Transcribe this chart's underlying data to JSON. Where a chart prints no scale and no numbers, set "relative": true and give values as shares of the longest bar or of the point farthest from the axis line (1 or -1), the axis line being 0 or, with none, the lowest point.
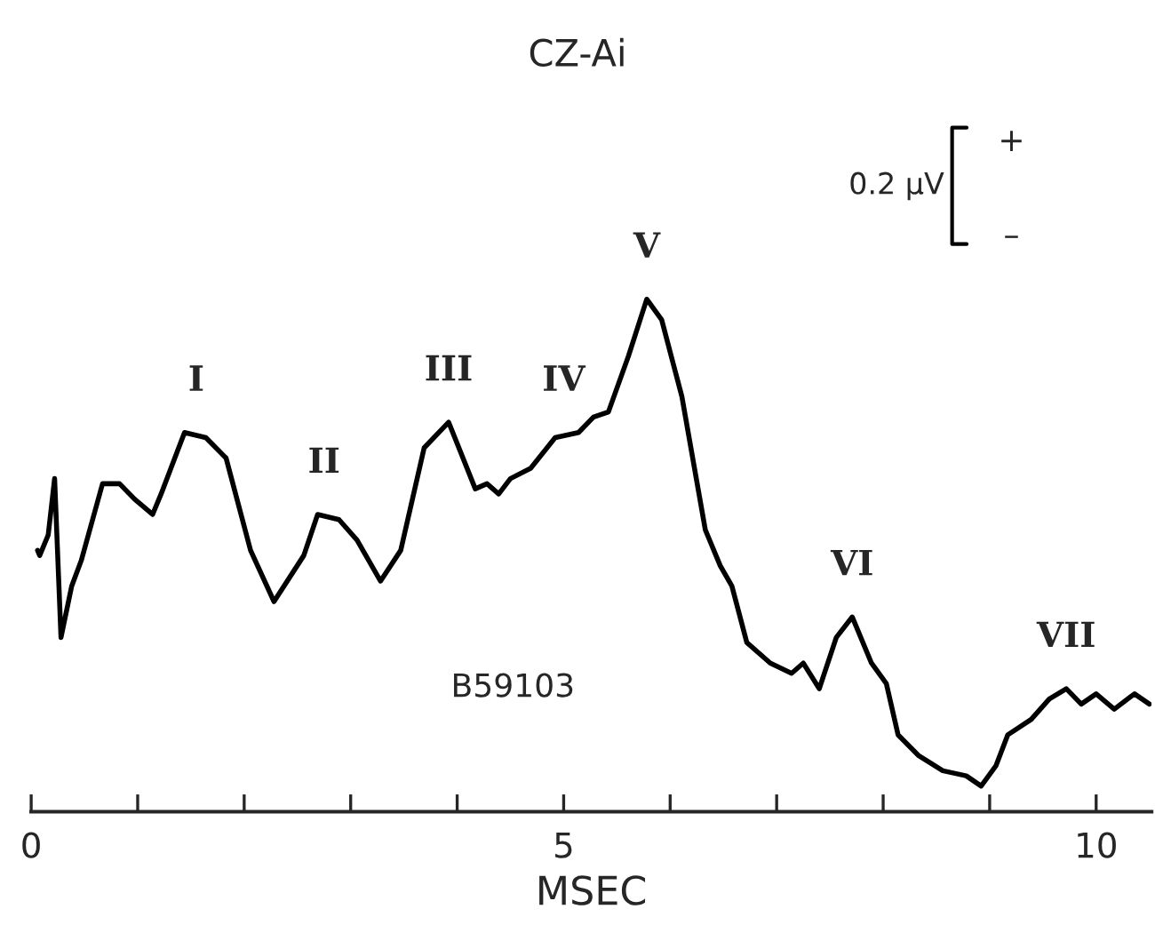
{
  "chart_data": {
    "type": "line",
    "title": "CZ-Ai",
    "xlabel": "MSEC",
    "relative": true,
    "xlim": [
      0,
      10.52
    ],
    "xticks": [
      0,
      {
        "value": 1,
        "label": null
      },
      {
        "value": 2,
        "label": null
      },
      {
        "value": 3,
        "label": null
      },
      {
        "value": 4,
        "label": null
      },
      5,
      {
        "value": 6,
        "label": null
      },
      {
        "value": 7,
        "label": null
      },
      {
        "value": 8,
        "label": null
      },
      {
        "value": 9,
        "label": null
      },
      10
    ],
    "tick_labels": "x",
    "grid": false,
    "legend": false,
    "marker": "none",
    "line_style": "solid",
    "series": [
      {
        "color": "#000000",
        "x": [
          0.06,
          0.08,
          0.16,
          0.22,
          0.28,
          0.38,
          0.47,
          0.67,
          0.83,
          0.97,
          1.14,
          1.22,
          1.44,
          1.64,
          1.83,
          2.06,
          2.28,
          2.56,
          2.69,
          2.89,
          3.06,
          3.28,
          3.47,
          3.69,
          3.92,
          4.17,
          4.28,
          4.39,
          4.5,
          4.69,
          4.92,
          5.14,
          5.28,
          5.42,
          5.61,
          5.78,
          5.92,
          6.11,
          6.33,
          6.47,
          6.58,
          6.72,
          6.94,
          7.14,
          7.25,
          7.4,
          7.56,
          7.71,
          7.89,
          8.03,
          8.14,
          8.33,
          8.56,
          8.78,
          8.92,
          9.06,
          9.17,
          9.39,
          9.56,
          9.72,
          9.86,
          10.0,
          10.17,
          10.36,
          10.5
        ],
        "values": [
          0.51,
          0.5,
          0.54,
          0.65,
          0.34,
          0.44,
          0.49,
          0.64,
          0.64,
          0.61,
          0.58,
          0.62,
          0.74,
          0.73,
          0.69,
          0.51,
          0.41,
          0.5,
          0.58,
          0.57,
          0.53,
          0.45,
          0.51,
          0.71,
          0.76,
          0.63,
          0.64,
          0.62,
          0.65,
          0.67,
          0.73,
          0.74,
          0.77,
          0.78,
          0.89,
          1.0,
          0.96,
          0.81,
          0.55,
          0.48,
          0.44,
          0.33,
          0.29,
          0.27,
          0.29,
          0.24,
          0.34,
          0.38,
          0.29,
          0.25,
          0.15,
          0.11,
          0.08,
          0.07,
          0.05,
          0.09,
          0.15,
          0.18,
          0.22,
          0.24,
          0.21,
          0.23,
          0.2,
          0.23,
          0.21
        ]
      }
    ],
    "annotations": [
      {
        "text": "I",
        "x": 1.55,
        "y": 0.74
      },
      {
        "text": "II",
        "x": 2.75,
        "y": 0.58
      },
      {
        "text": "III",
        "x": 3.92,
        "y": 0.76
      },
      {
        "text": "IV",
        "x": 5.0,
        "y": 0.74
      },
      {
        "text": "V",
        "x": 5.78,
        "y": 1.0
      },
      {
        "text": "VI",
        "x": 7.71,
        "y": 0.38
      },
      {
        "text": "VII",
        "x": 9.72,
        "y": 0.24
      },
      "B59103",
      "0.2 µV",
      "+",
      "–"
    ]
  }
}
